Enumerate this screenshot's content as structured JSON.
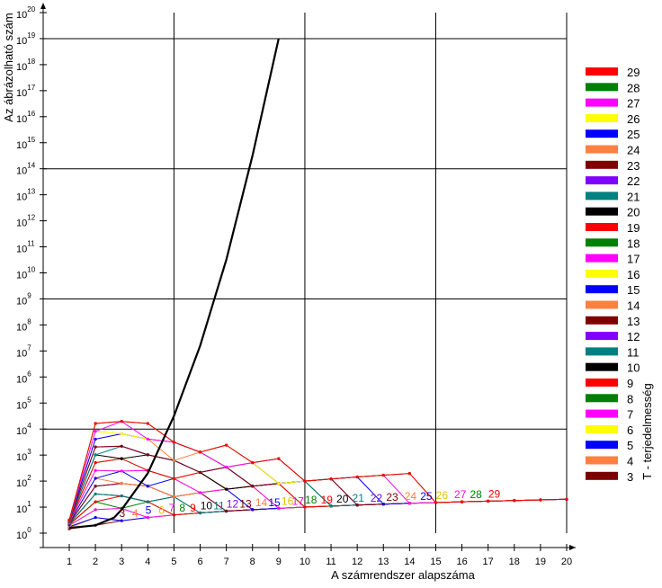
{
  "chart_data": {
    "type": "line",
    "xlabel": "A számrendszer alapszáma",
    "ylabel": "Az ábrázolható szám",
    "legend_title": "T - terjedelmesség",
    "legend_position": "right",
    "y_scale": "log",
    "xlim": [
      1,
      20
    ],
    "ylim_exponent": [
      0,
      20
    ],
    "x_ticks": [
      "1",
      "2",
      "3",
      "4",
      "5",
      "6",
      "7",
      "8",
      "9",
      "10",
      "11",
      "12",
      "13",
      "14",
      "15",
      "16",
      "17",
      "18",
      "19",
      "20"
    ],
    "y_tick_exponents": [
      0,
      1,
      2,
      3,
      4,
      5,
      6,
      7,
      8,
      9,
      10,
      11,
      12,
      13,
      14,
      15,
      16,
      17,
      18,
      19,
      20
    ],
    "grid": "major lines at x = 5, 10, 15, 20 and y = 10^4, 10^9, 10^14, 10^19",
    "envelope_curve": {
      "description": "maximum curve (x = e-based optimum)",
      "points_x": [
        1,
        2,
        2.718,
        3,
        4,
        5,
        6,
        7,
        8,
        9
      ],
      "points_log10y": [
        0.2,
        0.3,
        0.6,
        0.9,
        2.3,
        4.5,
        7.2,
        10.5,
        14.5,
        19.0
      ]
    },
    "series": [
      {
        "name": "3",
        "color": "#7a0000"
      },
      {
        "name": "4",
        "color": "#ff8040"
      },
      {
        "name": "5",
        "color": "#0000ff"
      },
      {
        "name": "6",
        "color": "#ffff00"
      },
      {
        "name": "7",
        "color": "#ff00ff"
      },
      {
        "name": "8",
        "color": "#008000"
      },
      {
        "name": "9",
        "color": "#ff0000"
      },
      {
        "name": "10",
        "color": "#000000"
      },
      {
        "name": "11",
        "color": "#008080"
      },
      {
        "name": "12",
        "color": "#8000ff"
      },
      {
        "name": "13",
        "color": "#800000"
      },
      {
        "name": "14",
        "color": "#ff8040"
      },
      {
        "name": "15",
        "color": "#0000ff"
      },
      {
        "name": "16",
        "color": "#ffff00"
      },
      {
        "name": "17",
        "color": "#ff00ff"
      },
      {
        "name": "18",
        "color": "#008000"
      },
      {
        "name": "19",
        "color": "#ff0000"
      },
      {
        "name": "20",
        "color": "#000000"
      },
      {
        "name": "21",
        "color": "#008080"
      },
      {
        "name": "22",
        "color": "#8000ff"
      },
      {
        "name": "23",
        "color": "#800000"
      },
      {
        "name": "24",
        "color": "#ff8040"
      },
      {
        "name": "25",
        "color": "#0000ff"
      },
      {
        "name": "26",
        "color": "#ffff00"
      },
      {
        "name": "27",
        "color": "#ff00ff"
      },
      {
        "name": "28",
        "color": "#008000"
      },
      {
        "name": "29",
        "color": "#ff0000"
      }
    ],
    "formula_note": "each series T: y = x^floor(T/x)"
  }
}
